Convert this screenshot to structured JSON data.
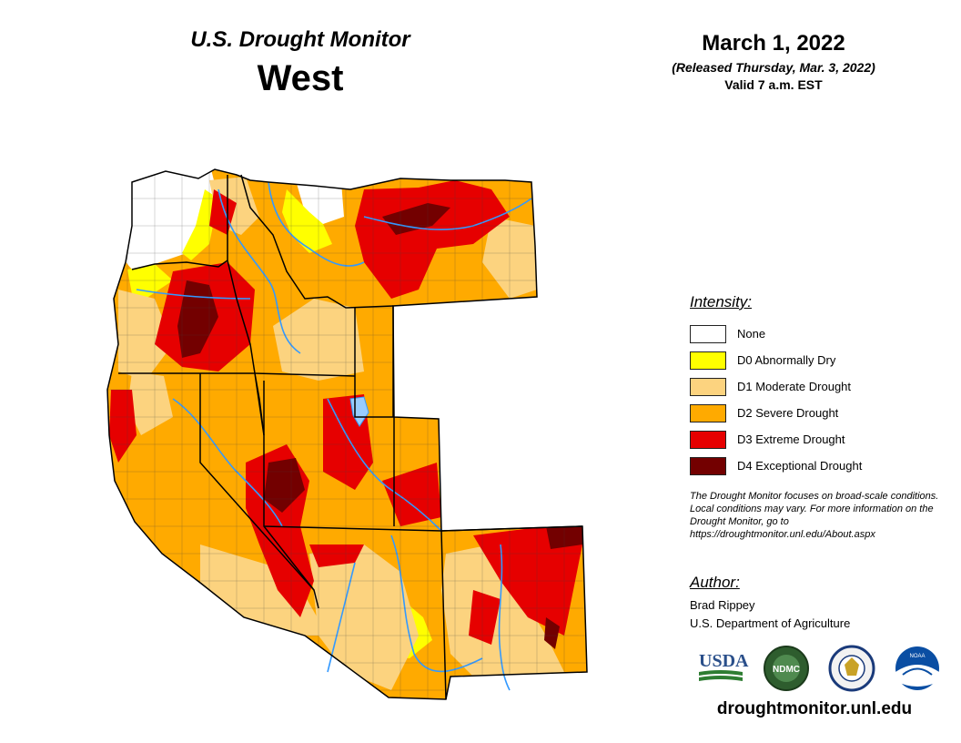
{
  "header": {
    "title": "U.S. Drought Monitor",
    "region": "West"
  },
  "date": {
    "main": "March 1, 2022",
    "released": "(Released Thursday, Mar. 3, 2022)",
    "valid": "Valid 7 a.m. EST"
  },
  "legend": {
    "heading": "Intensity:",
    "items": [
      {
        "label": "None",
        "color": "#ffffff"
      },
      {
        "label": "D0 Abnormally Dry",
        "color": "#ffff00"
      },
      {
        "label": "D1 Moderate Drought",
        "color": "#fcd37f"
      },
      {
        "label": "D2 Severe Drought",
        "color": "#ffaa00"
      },
      {
        "label": "D3 Extreme Drought",
        "color": "#e60000"
      },
      {
        "label": "D4 Exceptional Drought",
        "color": "#730000"
      }
    ]
  },
  "note": "The Drought Monitor focuses on broad-scale conditions. Local conditions may vary. For more information on the Drought Monitor, go to https://droughtmonitor.unl.edu/About.aspx",
  "author": {
    "heading": "Author:",
    "name": "Brad Rippey",
    "org": "U.S. Department of Agriculture"
  },
  "logos": [
    {
      "name": "usda-logo",
      "text": "USDA"
    },
    {
      "name": "ndmc-logo",
      "text": "NDMC"
    },
    {
      "name": "doc-seal-logo",
      "text": ""
    },
    {
      "name": "noaa-logo",
      "text": "NOAA"
    }
  ],
  "url": "droughtmonitor.unl.edu",
  "colors": {
    "water": "#3399ff",
    "border": "#000000"
  }
}
